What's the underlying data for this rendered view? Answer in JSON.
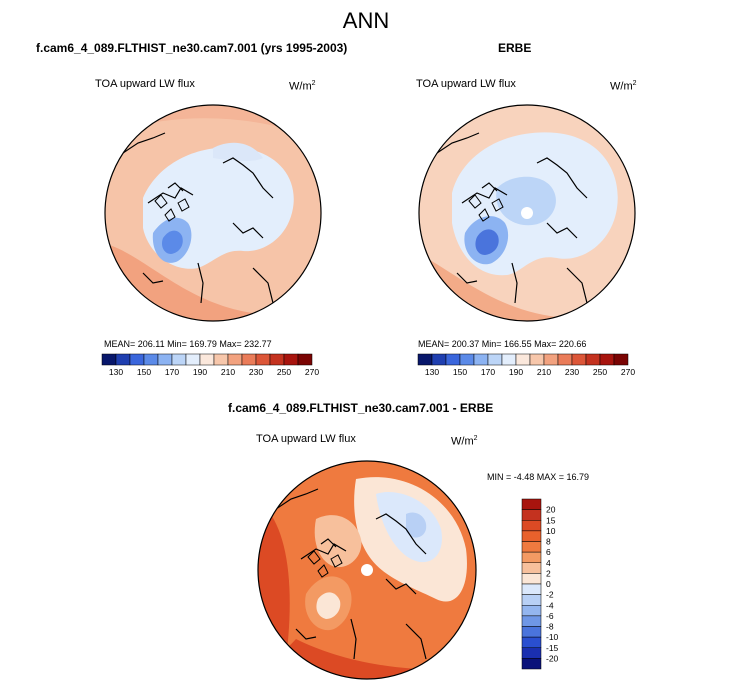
{
  "page_title": "ANN",
  "panels": {
    "model": {
      "title": "f.cam6_4_089.FLTHIST_ne30.cam7.001 (yrs 1995-2003)",
      "variable": "TOA upward LW flux",
      "units_base": "W/m",
      "units_exp": "2",
      "stats": "MEAN= 206.11  Min= 169.79  Max= 232.77"
    },
    "obs": {
      "title": "ERBE",
      "variable": "TOA upward LW flux",
      "units_base": "W/m",
      "units_exp": "2",
      "stats": "MEAN= 200.37  Min= 166.55  Max= 220.66"
    },
    "diff": {
      "title": "f.cam6_4_089.FLTHIST_ne30.cam7.001 - ERBE",
      "variable": "TOA upward LW flux",
      "units_base": "W/m",
      "units_exp": "2",
      "stats": "MIN =  -4.48 MAX =  16.79"
    }
  },
  "chart_data": [
    {
      "type": "heatmap",
      "projection": "north-polar-stereographic",
      "title": "f.cam6_4_089.FLTHIST_ne30.cam7.001 (yrs 1995-2003)",
      "variable": "TOA upward LW flux",
      "units": "W/m2",
      "mean": 206.11,
      "min": 169.79,
      "max": 232.77,
      "colorbar": {
        "orientation": "horizontal",
        "labels": [
          "130",
          "150",
          "170",
          "190",
          "210",
          "230",
          "250",
          "270"
        ],
        "colors": [
          "#08176b",
          "#1f3fb0",
          "#3a66dc",
          "#5b8ae8",
          "#8cb3f2",
          "#bcd5f7",
          "#e3eefc",
          "#fbe8dc",
          "#f7c7ab",
          "#f2a27f",
          "#ea7c59",
          "#dc5638",
          "#c4321f",
          "#a8140e",
          "#7a0403"
        ]
      }
    },
    {
      "type": "heatmap",
      "projection": "north-polar-stereographic",
      "title": "ERBE",
      "variable": "TOA upward LW flux",
      "units": "W/m2",
      "mean": 200.37,
      "min": 166.55,
      "max": 220.66,
      "colorbar": {
        "orientation": "horizontal",
        "labels": [
          "130",
          "150",
          "170",
          "190",
          "210",
          "230",
          "250",
          "270"
        ],
        "colors": [
          "#08176b",
          "#1f3fb0",
          "#3a66dc",
          "#5b8ae8",
          "#8cb3f2",
          "#bcd5f7",
          "#e3eefc",
          "#fbe8dc",
          "#f7c7ab",
          "#f2a27f",
          "#ea7c59",
          "#dc5638",
          "#c4321f",
          "#a8140e",
          "#7a0403"
        ]
      }
    },
    {
      "type": "heatmap",
      "projection": "north-polar-stereographic",
      "title": "f.cam6_4_089.FLTHIST_ne30.cam7.001 - ERBE",
      "variable": "TOA upward LW flux",
      "units": "W/m2",
      "min": -4.48,
      "max": 16.79,
      "colorbar": {
        "orientation": "vertical",
        "labels": [
          "20",
          "15",
          "10",
          "8",
          "6",
          "4",
          "2",
          "0",
          "-2",
          "-4",
          "-6",
          "-8",
          "-10",
          "-15",
          "-20"
        ],
        "colors": [
          "#a8140e",
          "#c4321f",
          "#dc4a24",
          "#e8612c",
          "#ef7a3f",
          "#f39a63",
          "#f7c09c",
          "#fbe6d6",
          "#dbe8fb",
          "#b8d0f5",
          "#94b6ef",
          "#6f97e6",
          "#4a74dc",
          "#2a4fd0",
          "#1a2fb0",
          "#0a127a"
        ]
      }
    }
  ]
}
